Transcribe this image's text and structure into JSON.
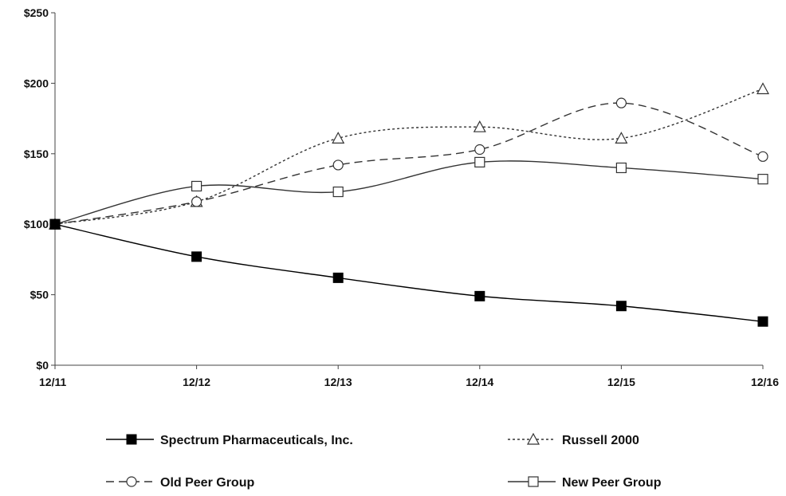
{
  "chart_data": {
    "type": "line",
    "x": [
      "12/11",
      "12/12",
      "12/13",
      "12/14",
      "12/15",
      "12/16"
    ],
    "ylim": [
      0,
      250
    ],
    "yticks": [
      0,
      50,
      100,
      150,
      200,
      250
    ],
    "ytick_labels": [
      "$0",
      "$50",
      "$100",
      "$150",
      "$200",
      "$250"
    ],
    "grid": false,
    "legend_placement": "bottom",
    "series": [
      {
        "name": "Spectrum Pharmaceuticals, Inc.",
        "values": [
          100,
          77,
          62,
          49,
          42,
          31
        ],
        "marker": "filled-square",
        "dash": "solid",
        "color": "#000000"
      },
      {
        "name": "Russell 2000",
        "values": [
          100,
          116,
          161,
          169,
          161,
          196
        ],
        "marker": "open-triangle",
        "dash": "dotted",
        "color": "#333333"
      },
      {
        "name": "Old Peer Group",
        "values": [
          100,
          116,
          142,
          153,
          186,
          148
        ],
        "marker": "open-circle",
        "dash": "dashed",
        "color": "#333333"
      },
      {
        "name": "New Peer Group",
        "values": [
          100,
          127,
          123,
          144,
          140,
          132
        ],
        "marker": "open-square",
        "dash": "solid",
        "color": "#333333"
      }
    ]
  }
}
